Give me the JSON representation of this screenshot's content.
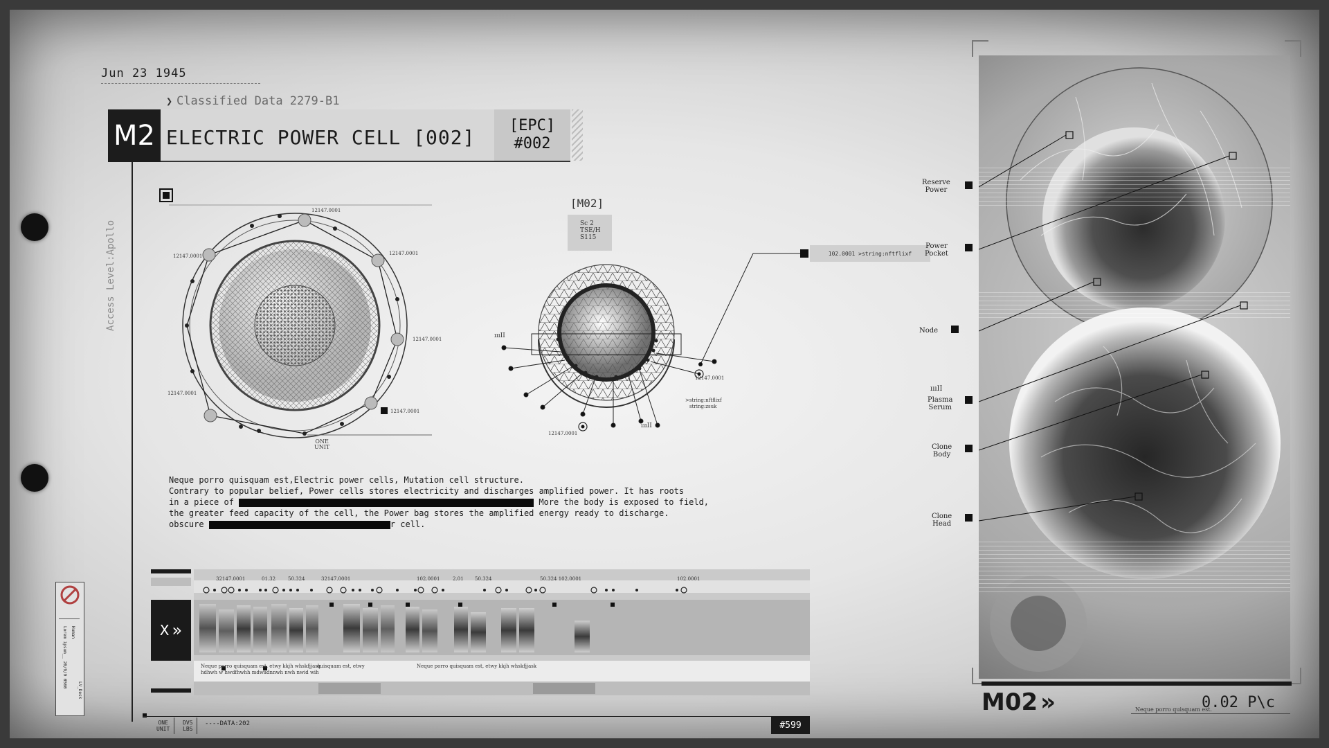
{
  "header": {
    "date": "Jun 23 1945",
    "classified": "Classified Data 2279-B1",
    "badge": "M2",
    "title": "ELECTRIC POWER CELL [002]",
    "epc_line1": "[EPC]",
    "epc_line2": "#002",
    "access": "Access Level:Apollo"
  },
  "diagram": {
    "section_label": "[M02]",
    "sc_box": [
      "Sc 2",
      "TSE/H",
      "S115"
    ],
    "coord_label": "12147.0001",
    "unit_label": [
      "ONE",
      "UNIT"
    ],
    "string_box": "102.0001 >string:nftflixf",
    "string_note": [
      ">string:nftflixf",
      "string:zsuk"
    ],
    "tick_marks": "ıııII"
  },
  "paragraph": {
    "line1": "Neque porro quisquam est,Electric power cells, Mutation cell structure.",
    "line2": "Contrary to popular belief, Power cells stores electricity and discharges amplified power. It has roots",
    "line3a": "in a piece of ",
    "line3b": " More the body is exposed to field,",
    "line4": "the greater feed capacity of the cell, the Power bag stores the amplified energy ready to discharge.",
    "line5a": "obscure ",
    "line5b": "r cell."
  },
  "gel": {
    "top_labels": [
      "32147.0001",
      "01.32",
      "50.324",
      "32147.0001",
      "102.0001",
      "2.01",
      "50.324",
      "50.324 102.0001",
      "102.0001"
    ],
    "caption1": "Neque porro quisquam est, etwy kkjh whskfjjask",
    "caption1b": "hdhwh w hwdfhwhh mdwadnnwh nwh nwid wih",
    "caption2": "quisquam est, etwy",
    "caption3": "Neque porro quisquam est, etwy kkjh whskfjjask",
    "x_label": "X"
  },
  "footer": {
    "cell1": [
      "ONE",
      "UNIT"
    ],
    "cell2": [
      "DVS",
      "LBS"
    ],
    "data": "----DATA:202",
    "badge": "#599"
  },
  "side_card": {
    "text1": "Human",
    "text2": "Lorem ipsum__ 20/9/9 0560",
    "text3": "LV_Desk"
  },
  "right_panel": {
    "labels": {
      "reserve": [
        "Reserve",
        "Power"
      ],
      "pocket": [
        "Power",
        "Pocket"
      ],
      "node": "Node",
      "plasma": [
        "Plasma",
        "Serum"
      ],
      "clone_body": [
        "Clone",
        "Body"
      ],
      "clone_head": [
        "Clone",
        "Head"
      ]
    },
    "ticks": "ıııII",
    "id": "M02",
    "rate": "0.02 P\\c",
    "rate_note": "Neque porro quisquam est."
  }
}
